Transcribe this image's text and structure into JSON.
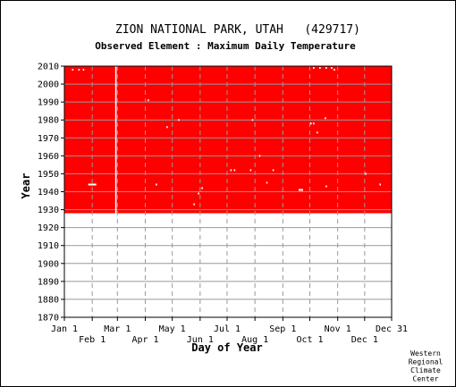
{
  "chart_data": {
    "type": "heatmap",
    "title": "ZION NATIONAL PARK, UTAH   (429717)",
    "subtitle": "Observed Element : Maximum Daily Temperature",
    "xlabel": "Day of Year",
    "ylabel": "Year",
    "xlim": [
      1,
      365
    ],
    "ylim": [
      1870,
      2010
    ],
    "y_ticks": [
      1870,
      1880,
      1890,
      1900,
      1910,
      1920,
      1930,
      1940,
      1950,
      1960,
      1970,
      1980,
      1990,
      2000,
      2010
    ],
    "x_ticks_upper": [
      {
        "label": "Jan 1",
        "day": 1
      },
      {
        "label": "Mar 1",
        "day": 60
      },
      {
        "label": "May 1",
        "day": 121
      },
      {
        "label": "Jul 1",
        "day": 182
      },
      {
        "label": "Sep 1",
        "day": 244
      },
      {
        "label": "Nov 1",
        "day": 305
      },
      {
        "label": "Dec 31",
        "day": 365
      }
    ],
    "x_ticks_lower": [
      {
        "label": "Feb 1",
        "day": 32
      },
      {
        "label": "Apr 1",
        "day": 91
      },
      {
        "label": "Jun 1",
        "day": 152
      },
      {
        "label": "Aug 1",
        "day": 213
      },
      {
        "label": "Oct 1",
        "day": 274
      },
      {
        "label": "Dec 1",
        "day": 335
      }
    ],
    "grid": true,
    "observed_color": "#ff0000",
    "observed_period": {
      "year_start": 1928,
      "year_end": 2010,
      "day_start": 1,
      "day_end": 365
    },
    "missing_data": [
      {
        "day": 10,
        "year": 2008
      },
      {
        "day": 17,
        "year": 2008
      },
      {
        "day": 22,
        "year": 2008
      },
      {
        "day": 58,
        "year_start": 1928,
        "year_end": 2010
      },
      {
        "day_start": 28,
        "day_end": 36,
        "year": 1944
      },
      {
        "day": 94,
        "year": 1991
      },
      {
        "day": 103,
        "year": 1944
      },
      {
        "day": 115,
        "year": 1976
      },
      {
        "day": 128,
        "year": 1980
      },
      {
        "day": 145,
        "year": 1933
      },
      {
        "day": 150,
        "year": 1939
      },
      {
        "day": 154,
        "year": 1942
      },
      {
        "day": 186,
        "year": 1952
      },
      {
        "day": 190,
        "year": 1952
      },
      {
        "day": 208,
        "year": 1952
      },
      {
        "day": 210,
        "year": 1980
      },
      {
        "day": 218,
        "year": 1960
      },
      {
        "day": 226,
        "year": 1945
      },
      {
        "day": 233,
        "year": 1952
      },
      {
        "day_start": 262,
        "day_end": 266,
        "year": 1941
      },
      {
        "day": 275,
        "year": 1978
      },
      {
        "day": 278,
        "year": 1978
      },
      {
        "day": 282,
        "year": 1973
      },
      {
        "day": 291,
        "year": 1981
      },
      {
        "day": 292,
        "year": 1943
      },
      {
        "day": 278,
        "year": 2009
      },
      {
        "day": 285,
        "year": 2009
      },
      {
        "day": 292,
        "year": 2009
      },
      {
        "day": 298,
        "year": 2009
      },
      {
        "day": 301,
        "year": 2008
      },
      {
        "day": 336,
        "year": 1950
      },
      {
        "day": 352,
        "year": 1944
      }
    ],
    "credit": [
      "Western",
      "Regional",
      "Climate",
      "Center"
    ]
  }
}
